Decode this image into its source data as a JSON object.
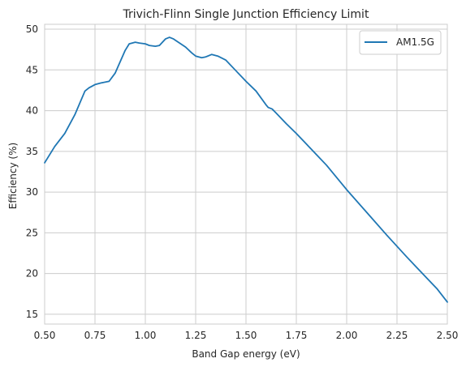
{
  "chart_data": {
    "type": "line",
    "title": "Trivich-Flinn Single Junction Efficiency Limit",
    "xlabel": "Band Gap energy (eV)",
    "ylabel": "Efficiency (%)",
    "xlim": [
      0.5,
      2.5
    ],
    "ylim": [
      13.8,
      50.6
    ],
    "xticks": [
      0.5,
      0.75,
      1.0,
      1.25,
      1.5,
      1.75,
      2.0,
      2.25,
      2.5
    ],
    "xtick_labels": [
      "0.50",
      "0.75",
      "1.00",
      "1.25",
      "1.50",
      "1.75",
      "2.00",
      "2.25",
      "2.50"
    ],
    "yticks": [
      15,
      20,
      25,
      30,
      35,
      40,
      45,
      50
    ],
    "ytick_labels": [
      "15",
      "20",
      "25",
      "30",
      "35",
      "40",
      "45",
      "50"
    ],
    "grid": true,
    "legend_position": "top-right",
    "series": [
      {
        "name": "AM1.5G",
        "color": "#1f77b4",
        "x": [
          0.5,
          0.55,
          0.6,
          0.65,
          0.7,
          0.72,
          0.75,
          0.78,
          0.8,
          0.82,
          0.85,
          0.9,
          0.92,
          0.95,
          0.97,
          1.0,
          1.02,
          1.05,
          1.07,
          1.1,
          1.12,
          1.14,
          1.17,
          1.2,
          1.23,
          1.25,
          1.28,
          1.3,
          1.33,
          1.36,
          1.4,
          1.45,
          1.5,
          1.55,
          1.6,
          1.61,
          1.63,
          1.65,
          1.7,
          1.75,
          1.8,
          1.85,
          1.9,
          2.0,
          2.1,
          2.2,
          2.3,
          2.4,
          2.45,
          2.5
        ],
        "y": [
          33.6,
          35.6,
          37.2,
          39.5,
          42.4,
          42.8,
          43.2,
          43.4,
          43.5,
          43.6,
          44.6,
          47.4,
          48.2,
          48.4,
          48.3,
          48.2,
          48.0,
          47.9,
          48.0,
          48.8,
          49.0,
          48.8,
          48.3,
          47.8,
          47.1,
          46.7,
          46.5,
          46.6,
          46.9,
          46.7,
          46.2,
          44.9,
          43.6,
          42.4,
          40.7,
          40.4,
          40.2,
          39.7,
          38.4,
          37.2,
          35.9,
          34.6,
          33.3,
          30.3,
          27.5,
          24.7,
          22.0,
          19.4,
          18.1,
          16.5
        ]
      }
    ]
  }
}
